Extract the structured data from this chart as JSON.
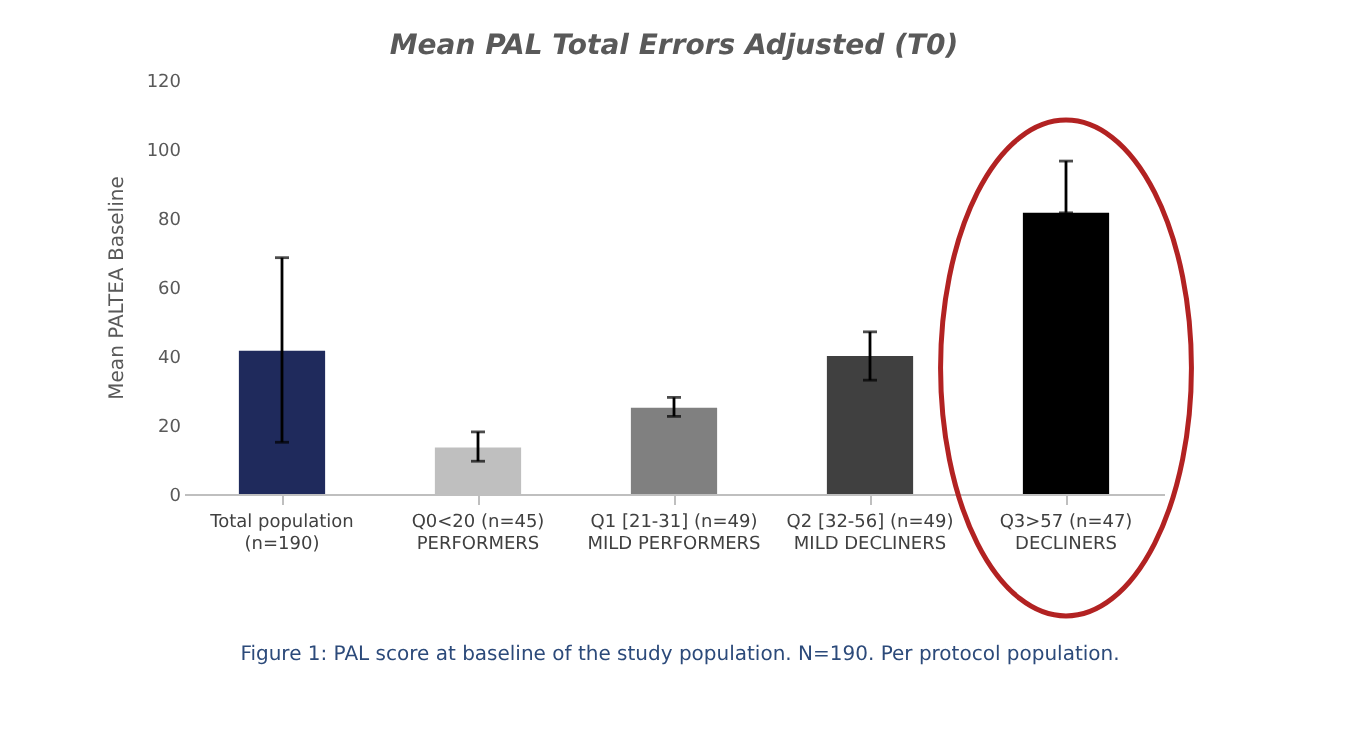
{
  "chart_data": {
    "type": "bar",
    "title": "Mean PAL Total Errors Adjusted (T0)",
    "ylabel": "Mean PALTEA Baseline",
    "categories": [
      "Total population\n(n=190)",
      "Q0<20 (n=45)\nPERFORMERS",
      "Q1 [21-31] (n=49)\nMILD PERFORMERS",
      "Q2 [32-56] (n=49)\nMILD DECLINERS",
      "Q3>57 (n=47)\nDECLINERS"
    ],
    "values": [
      41.5,
      13.5,
      25,
      40,
      81.5
    ],
    "colors": [
      "#1f2a5c",
      "#bfbfbf",
      "#808080",
      "#404040",
      "#000000"
    ],
    "errors": [
      [
        15,
        68.5
      ],
      [
        9.5,
        18
      ],
      [
        22.5,
        28
      ],
      [
        33,
        47
      ],
      [
        81.5,
        96.5
      ]
    ],
    "ylim": [
      0,
      120
    ],
    "yticks": [
      0,
      20,
      40,
      60,
      80,
      100,
      120
    ],
    "grid": false,
    "annotations": [
      "Figure 1: PAL score at baseline of the study population. N=190. Per protocol population."
    ]
  }
}
